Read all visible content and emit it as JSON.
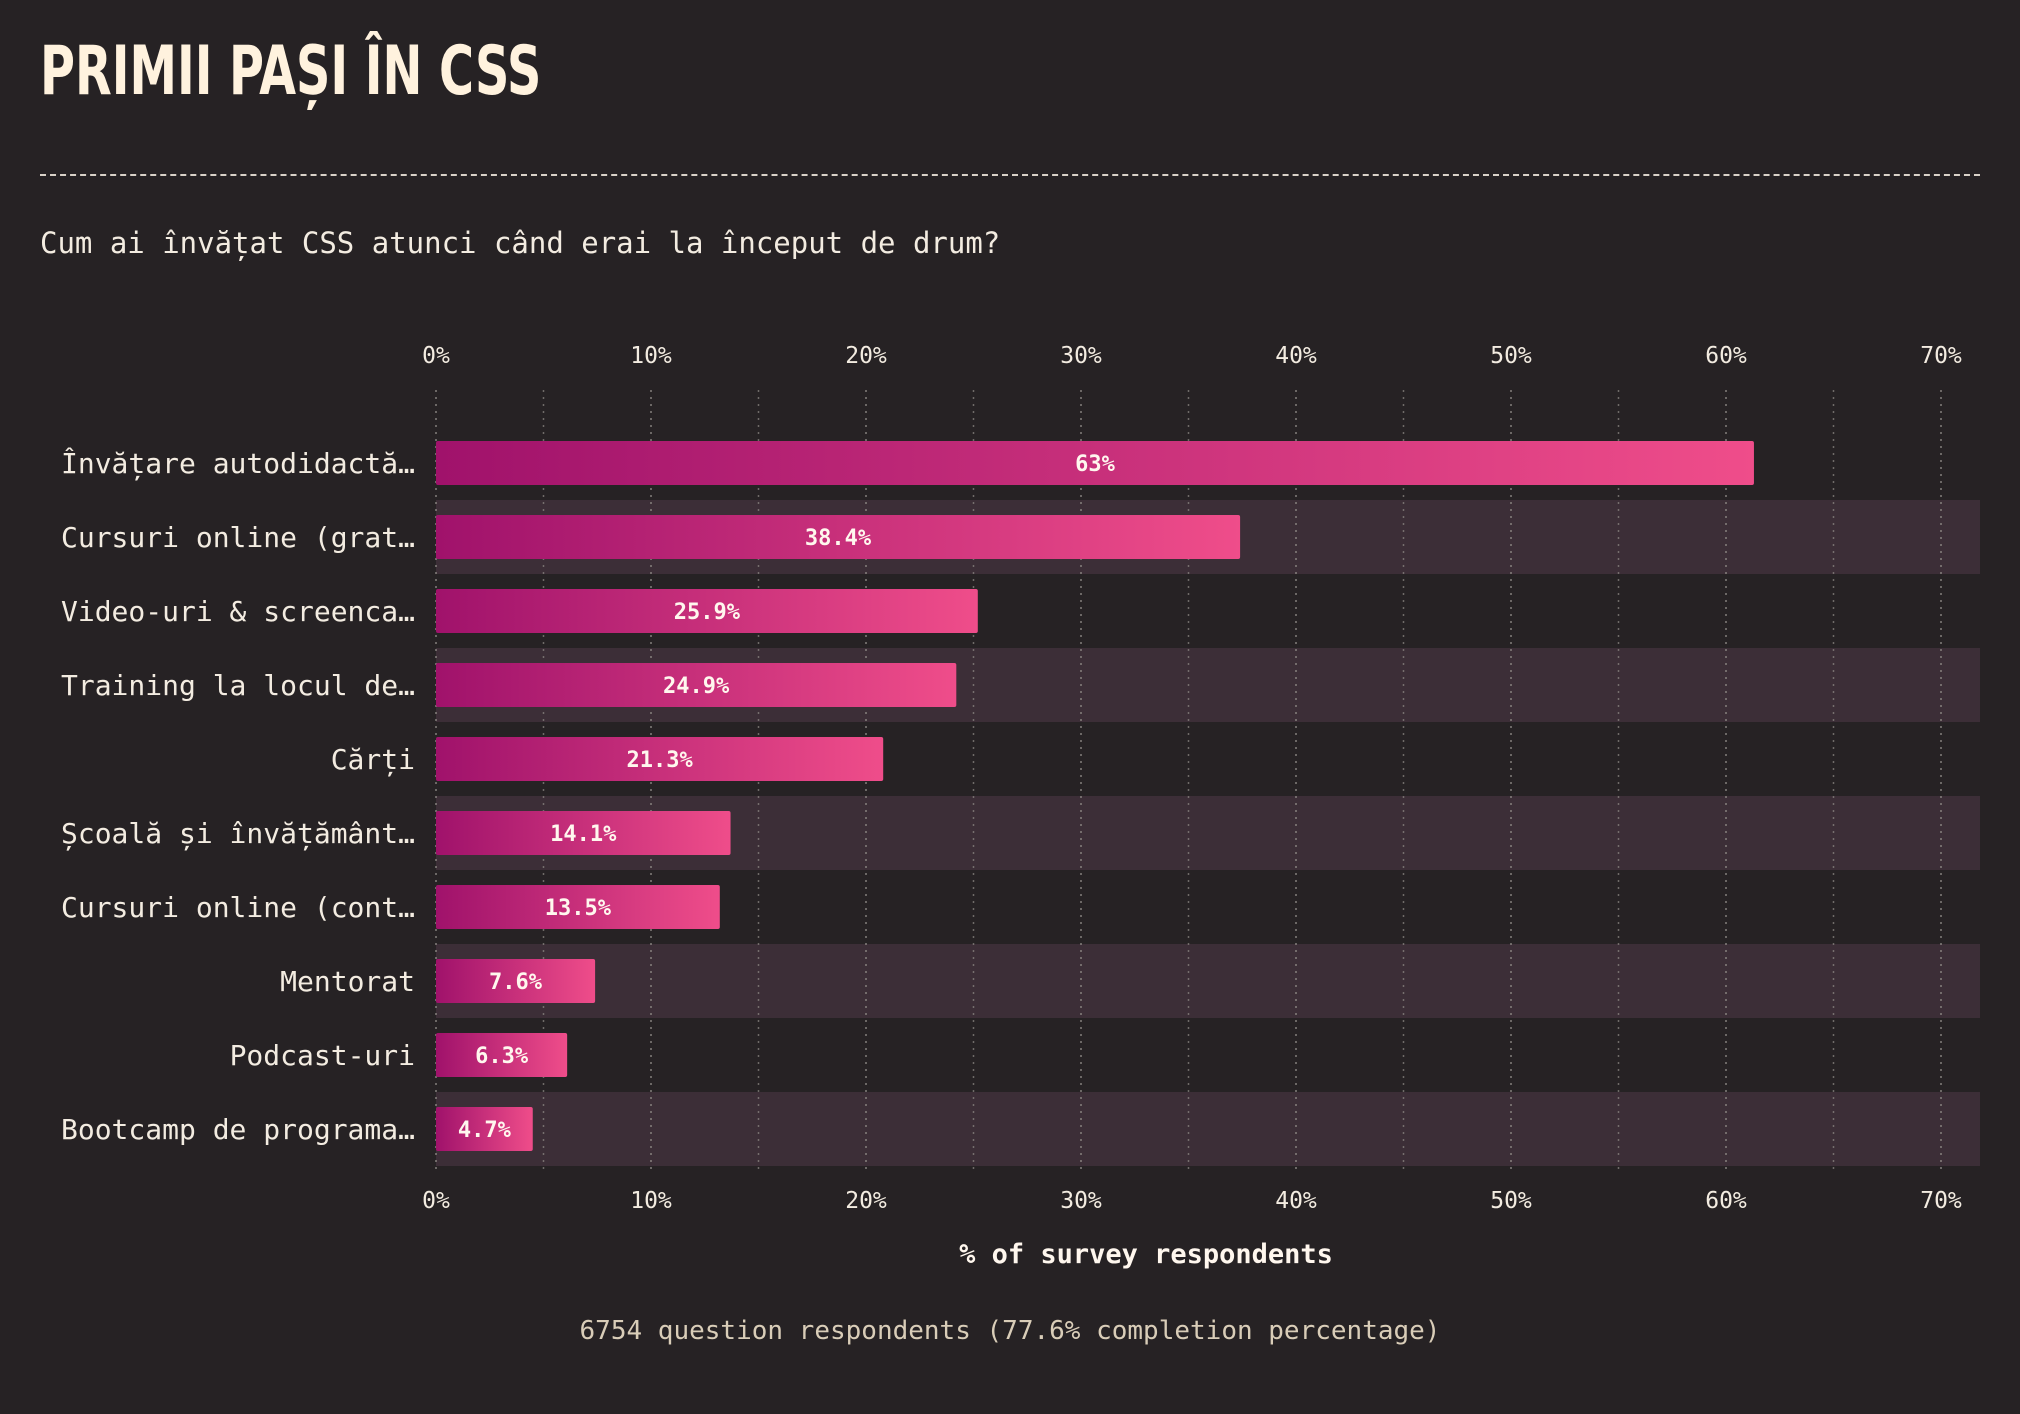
{
  "page": {
    "title": "PRIMII PAȘI ÎN CSS",
    "question": "Cum ai învățat CSS atunci când erai la început de drum?",
    "footer": "6754 question respondents (77.6% completion percentage)"
  },
  "colors": {
    "background": "#262224",
    "stripe": "#3c2e37",
    "bar_start": "#a0126b",
    "bar_end": "#ef4d8a",
    "text": "#f3ece1",
    "grid": "#8f8a86"
  },
  "chart_data": {
    "type": "bar",
    "orientation": "horizontal",
    "categories": [
      "Învățare autodidactă…",
      "Cursuri online (grat…",
      "Video-uri & screenca…",
      "Training la locul de…",
      "Cărți",
      "Școală și învățământ…",
      "Cursuri online (cont…",
      "Mentorat",
      "Podcast-uri",
      "Bootcamp de programa…"
    ],
    "values": [
      61.3,
      37.4,
      25.2,
      24.2,
      20.8,
      13.7,
      13.2,
      7.4,
      6.1,
      4.5
    ],
    "value_labels": [
      "63%",
      "38.4%",
      "25.9%",
      "24.9%",
      "21.3%",
      "14.1%",
      "13.5%",
      "7.6%",
      "6.3%",
      "4.7%"
    ],
    "xlabel": "% of survey respondents",
    "ylabel": "",
    "xlim": [
      0,
      72
    ],
    "ticks": [
      0,
      10,
      20,
      30,
      40,
      50,
      60,
      70
    ],
    "tick_labels": [
      "0%",
      "10%",
      "20%",
      "30%",
      "40%",
      "50%",
      "60%",
      "70%"
    ],
    "minor_gridlines": [
      5,
      15,
      25,
      35,
      45,
      55,
      65
    ],
    "grid": true,
    "alternating_row_stripes": true
  }
}
